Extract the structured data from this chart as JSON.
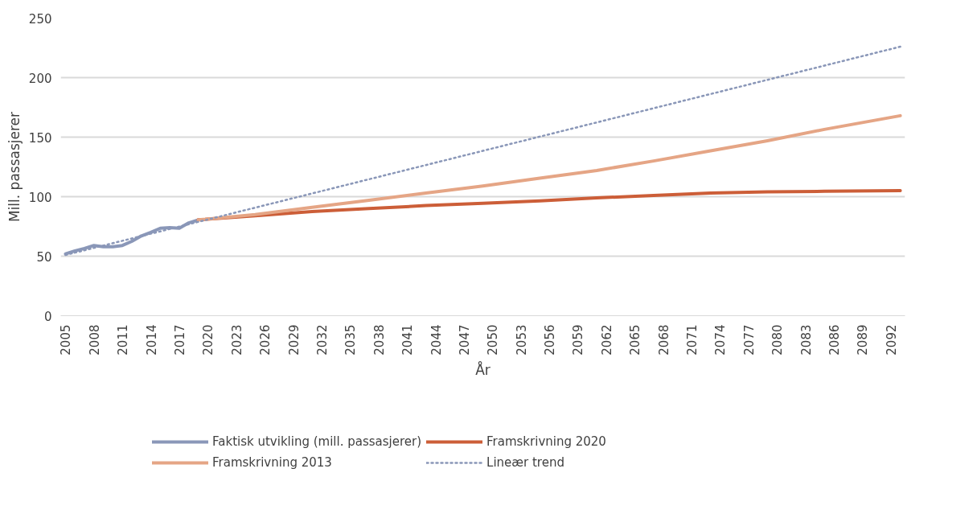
{
  "chart_data": {
    "type": "line",
    "xlabel": "År",
    "ylabel": "Mill. passasjerer",
    "xlim": [
      2004.5,
      2093.5
    ],
    "ylim": [
      0,
      250
    ],
    "xticks": [
      2005,
      2008,
      2011,
      2014,
      2017,
      2020,
      2023,
      2026,
      2029,
      2032,
      2035,
      2038,
      2041,
      2044,
      2047,
      2050,
      2053,
      2056,
      2059,
      2062,
      2065,
      2068,
      2071,
      2074,
      2077,
      2080,
      2083,
      2086,
      2089,
      2092
    ],
    "yticks": [
      0,
      50,
      100,
      150,
      200,
      250
    ],
    "grid": "y",
    "legend": "bottom",
    "marker": "none",
    "series": [
      {
        "name": "Faktisk utvikling (mill. passasjerer)",
        "color": "#8a97b8",
        "x": [
          2005,
          2006,
          2007,
          2008,
          2009,
          2010,
          2011,
          2012,
          2013,
          2014,
          2015,
          2016,
          2017,
          2018,
          2019
        ],
        "values": [
          52,
          54.5,
          56.5,
          59,
          58,
          58,
          59,
          62.5,
          67,
          70,
          73.5,
          74,
          73.5,
          78,
          80.5
        ]
      },
      {
        "name": "Framskrivning 2020",
        "color": "#cc5e38",
        "x": [
          2019,
          2025,
          2031,
          2037,
          2043,
          2049,
          2055,
          2061,
          2067,
          2073,
          2079,
          2085,
          2093
        ],
        "values": [
          80.5,
          84,
          87.5,
          90,
          92.5,
          94.5,
          96.5,
          99,
          101,
          103,
          104,
          104.5,
          105
        ]
      },
      {
        "name": "Framskrivning 2013",
        "color": "#e5a585",
        "x": [
          2019,
          2025,
          2031,
          2037,
          2043,
          2049,
          2055,
          2061,
          2067,
          2073,
          2079,
          2085,
          2093
        ],
        "values": [
          80.5,
          85,
          91,
          97,
          103,
          109,
          115.5,
          122,
          130,
          138.5,
          147,
          156.5,
          168
        ]
      },
      {
        "name": "Lineær trend",
        "color": "#8a97b8",
        "line_style": "dotted",
        "x": [
          2005,
          2093
        ],
        "values": [
          51,
          226
        ]
      }
    ]
  }
}
